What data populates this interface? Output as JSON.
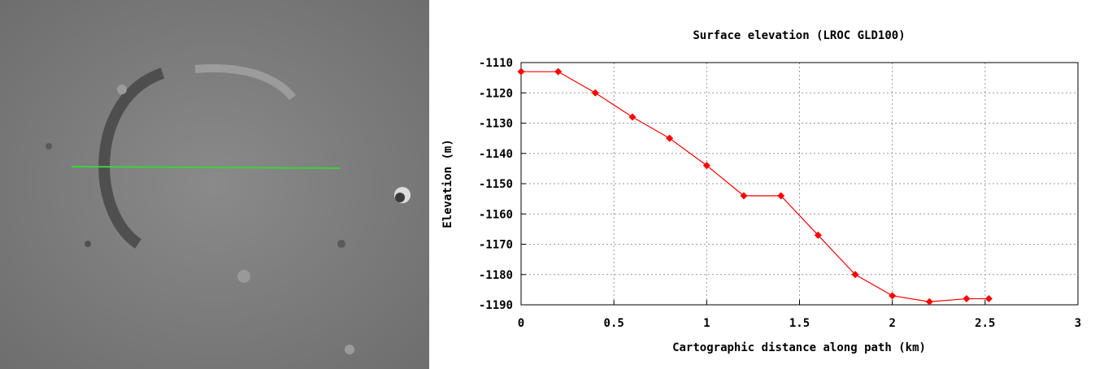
{
  "chart_data": {
    "type": "line",
    "title": "Surface elevation (LROC GLD100)",
    "x_label": "Cartographic distance along path (km)",
    "y_label": "Elevation (m)",
    "x": [
      0,
      0.2,
      0.4,
      0.6,
      0.8,
      1.0,
      1.2,
      1.4,
      1.6,
      1.8,
      2.0,
      2.2,
      2.4,
      2.52
    ],
    "values": [
      -1113,
      -1113,
      -1120,
      -1128,
      -1135,
      -1144,
      -1154,
      -1154,
      -1167,
      -1180,
      -1187,
      -1189,
      -1188,
      -1188
    ],
    "color": "#ff0000",
    "xlim": [
      0,
      3
    ],
    "xticks": [
      0,
      0.5,
      1,
      1.5,
      2,
      2.5,
      3
    ],
    "ylim": [
      -1190,
      -1110
    ],
    "yticks": [
      -1110,
      -1120,
      -1130,
      -1140,
      -1150,
      -1160,
      -1170,
      -1180,
      -1190
    ],
    "grid": true
  }
}
